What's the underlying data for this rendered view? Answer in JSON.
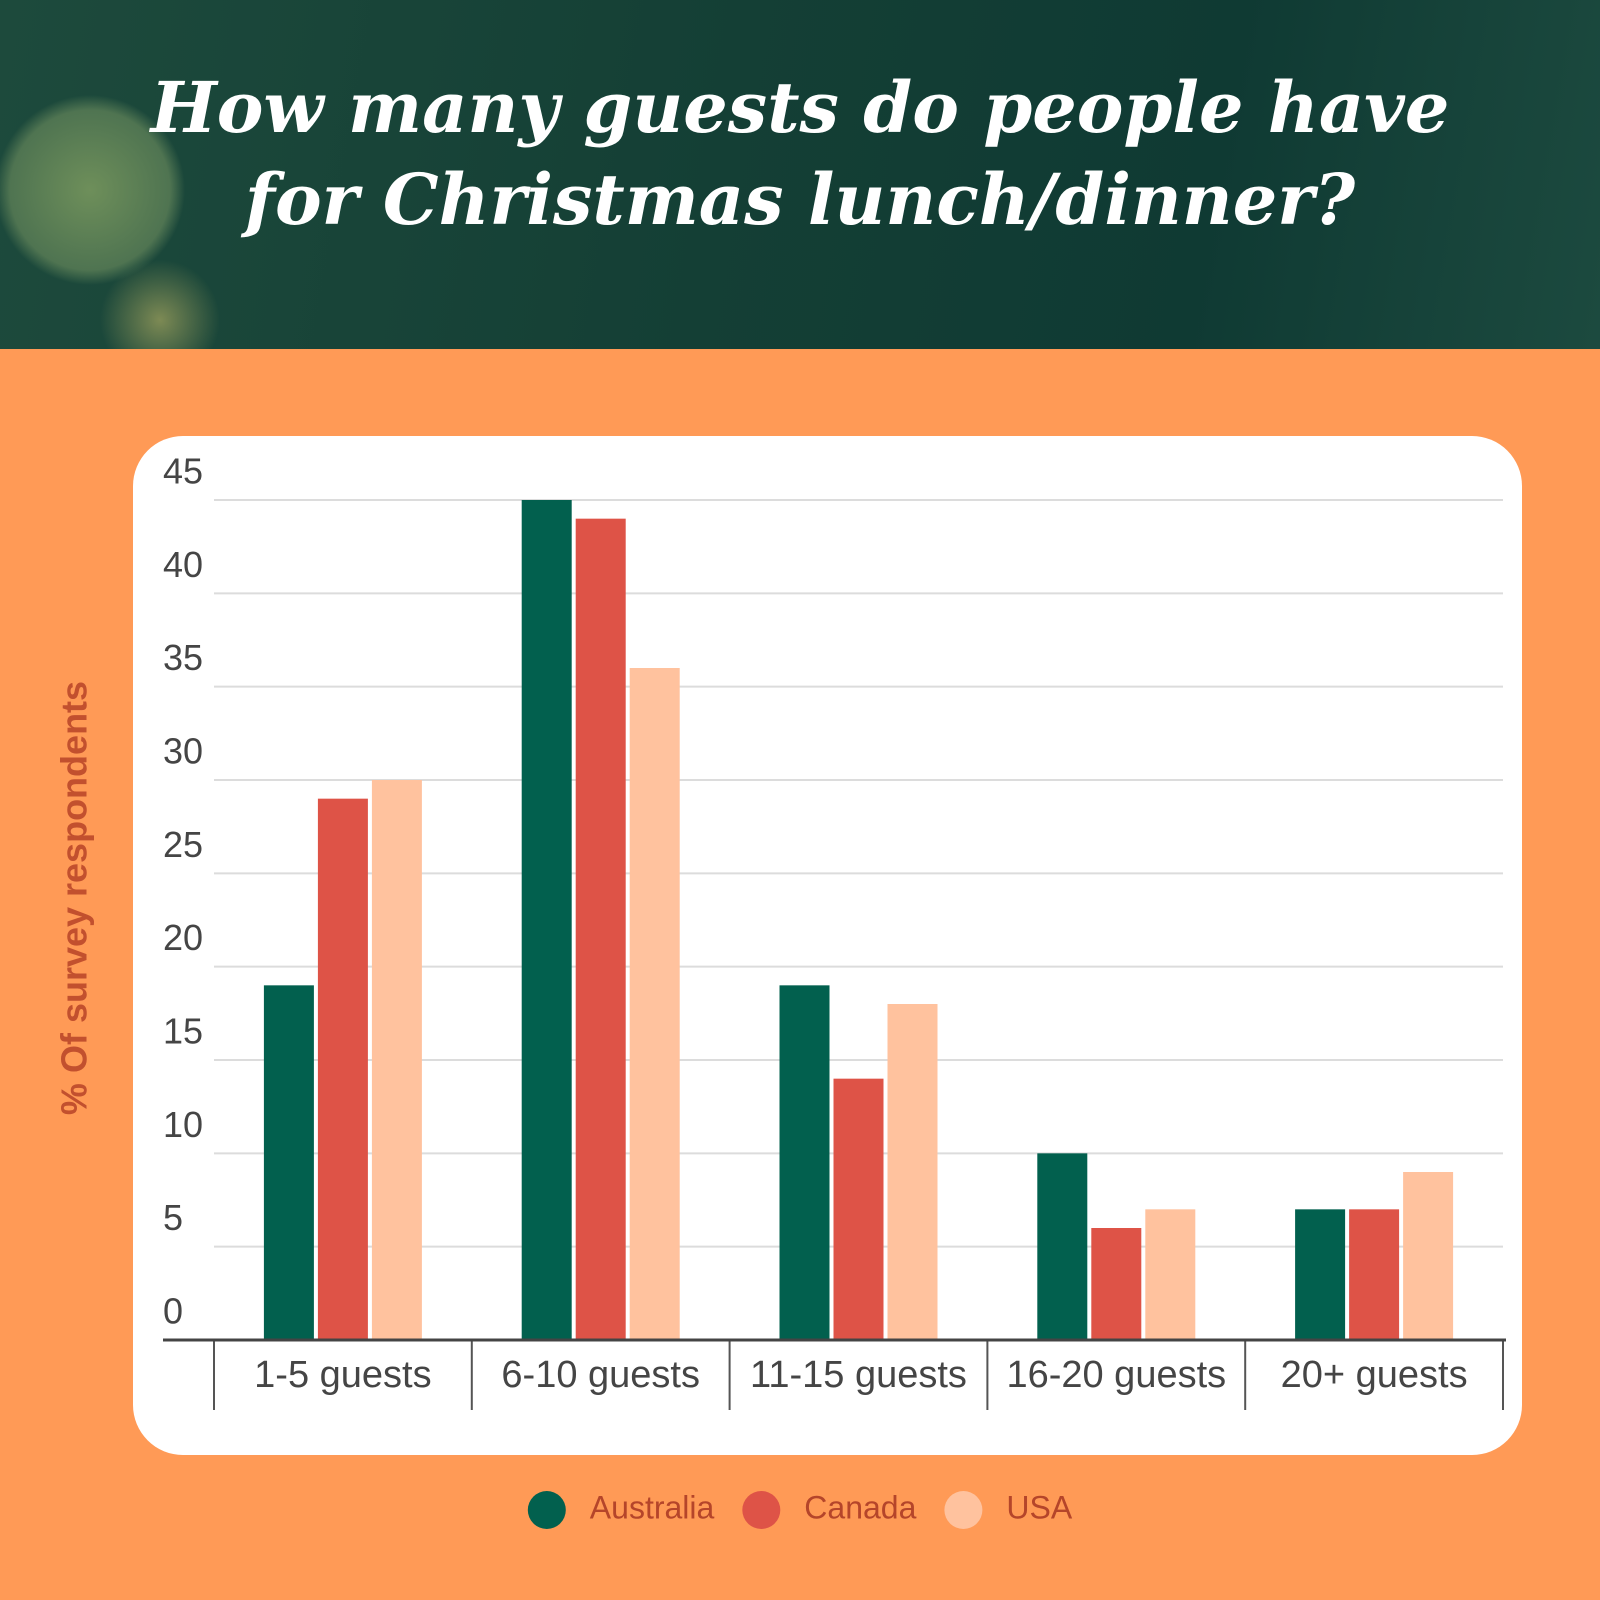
{
  "chart_data": {
    "type": "bar",
    "title": "How many guests do people have for Christmas lunch/dinner?",
    "y_label": "% Of survey respondents",
    "categories": [
      "1-5 guests",
      "6-10 guests",
      "11-15 guests",
      "16-20 guests",
      "20+ guests"
    ],
    "series": [
      {
        "name": "Australia",
        "color": "#02604e",
        "values": [
          19,
          45,
          19,
          10,
          7
        ]
      },
      {
        "name": "Canada",
        "color": "#de5347",
        "values": [
          29,
          44,
          14,
          6,
          7
        ]
      },
      {
        "name": "USA",
        "color": "#ffc29e",
        "values": [
          30,
          36,
          18,
          7,
          9
        ]
      }
    ],
    "ylim": [
      0,
      45
    ],
    "yticks": [
      0,
      5,
      10,
      15,
      20,
      25,
      30,
      35,
      40,
      45
    ],
    "grid": true
  }
}
